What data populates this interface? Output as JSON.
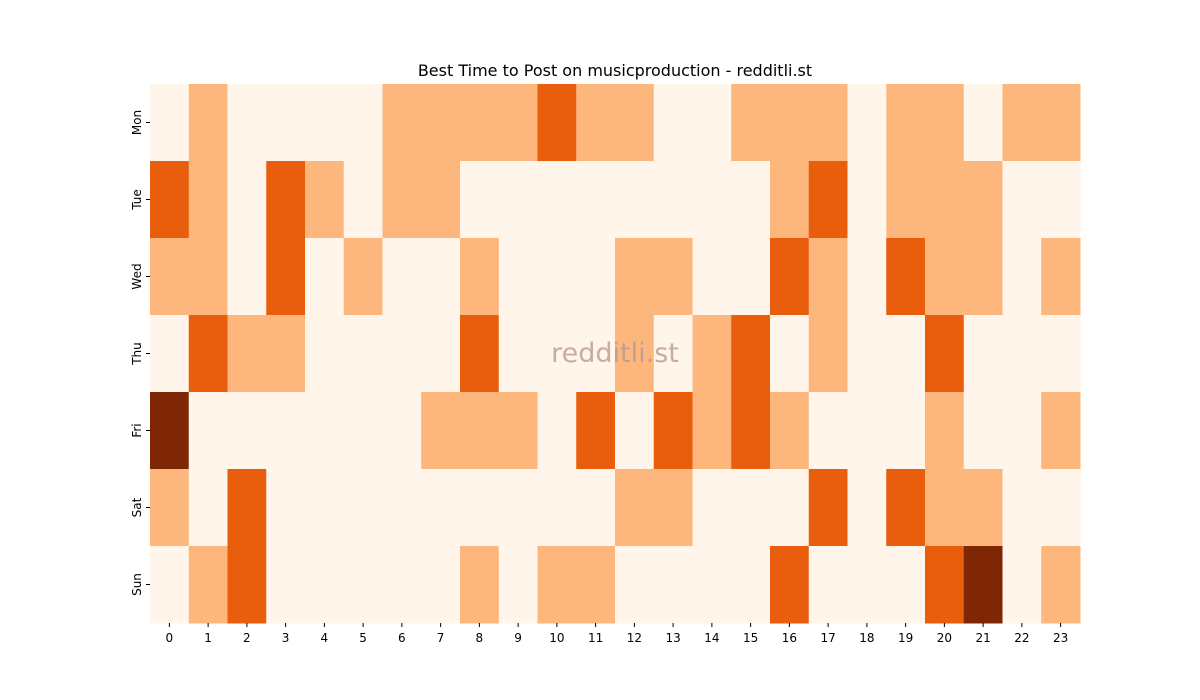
{
  "chart_data": {
    "type": "heatmap",
    "title": "Best Time to Post on musicproduction - redditli.st",
    "watermark": "redditli.st",
    "xlabel": "",
    "ylabel": "",
    "x_categories": [
      "0",
      "1",
      "2",
      "3",
      "4",
      "5",
      "6",
      "7",
      "8",
      "9",
      "10",
      "11",
      "12",
      "13",
      "14",
      "15",
      "16",
      "17",
      "18",
      "19",
      "20",
      "21",
      "22",
      "23"
    ],
    "y_categories": [
      "Mon",
      "Tue",
      "Wed",
      "Thu",
      "Fri",
      "Sat",
      "Sun"
    ],
    "levels": [
      0,
      1,
      2,
      3
    ],
    "colors": [
      "#fff5eb",
      "#fdb77c",
      "#e95e0d",
      "#7f2704"
    ],
    "grid": false,
    "legend": "none",
    "values": [
      [
        0,
        1,
        0,
        0,
        0,
        0,
        1,
        1,
        1,
        1,
        2,
        1,
        1,
        0,
        0,
        1,
        1,
        1,
        0,
        1,
        1,
        0,
        1,
        1
      ],
      [
        2,
        1,
        0,
        2,
        1,
        0,
        1,
        1,
        0,
        0,
        0,
        0,
        0,
        0,
        0,
        0,
        1,
        2,
        0,
        1,
        1,
        1,
        0,
        0
      ],
      [
        1,
        1,
        0,
        2,
        0,
        1,
        0,
        0,
        1,
        0,
        0,
        0,
        1,
        1,
        0,
        0,
        2,
        1,
        0,
        2,
        1,
        1,
        0,
        1
      ],
      [
        0,
        2,
        1,
        1,
        0,
        0,
        0,
        0,
        2,
        0,
        0,
        0,
        1,
        0,
        1,
        2,
        0,
        1,
        0,
        0,
        2,
        0,
        0,
        0
      ],
      [
        3,
        0,
        0,
        0,
        0,
        0,
        0,
        1,
        1,
        1,
        0,
        2,
        0,
        2,
        1,
        2,
        1,
        0,
        0,
        0,
        1,
        0,
        0,
        1
      ],
      [
        1,
        0,
        2,
        0,
        0,
        0,
        0,
        0,
        0,
        0,
        0,
        0,
        1,
        1,
        0,
        0,
        0,
        2,
        0,
        2,
        1,
        1,
        0,
        0
      ],
      [
        0,
        1,
        2,
        0,
        0,
        0,
        0,
        0,
        1,
        0,
        1,
        1,
        0,
        0,
        0,
        0,
        2,
        0,
        0,
        0,
        2,
        3,
        0,
        1
      ]
    ]
  }
}
